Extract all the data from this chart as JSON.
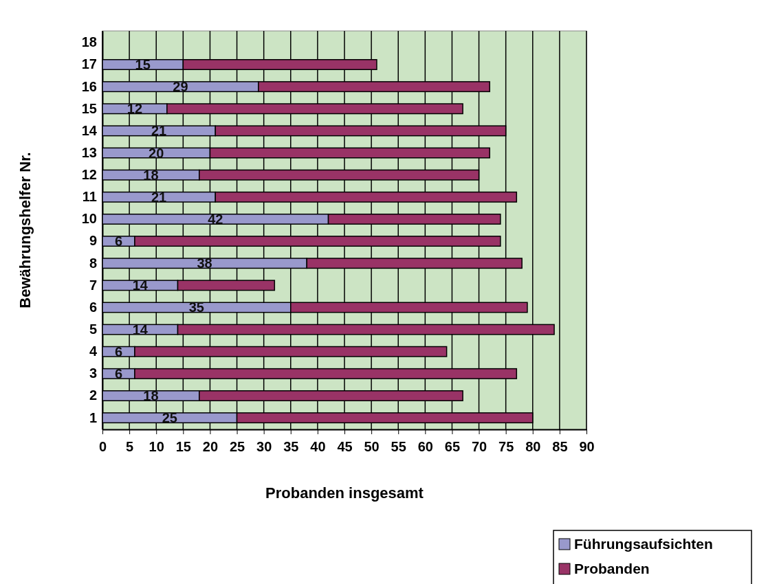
{
  "chart_data": {
    "type": "bar",
    "orientation": "horizontal",
    "stacked": true,
    "xlabel": "Probanden insgesamt",
    "ylabel": "Bewährungshelfer Nr.",
    "categories": [
      "18",
      "17",
      "16",
      "15",
      "14",
      "13",
      "12",
      "11",
      "10",
      "9",
      "8",
      "7",
      "6",
      "5",
      "4",
      "3",
      "2",
      "1"
    ],
    "series": [
      {
        "name": "Führungsaufsichten",
        "color": "#9999cc",
        "values": [
          null,
          15,
          29,
          12,
          21,
          20,
          18,
          21,
          42,
          6,
          38,
          14,
          35,
          14,
          6,
          6,
          18,
          25
        ],
        "value_labels": [
          null,
          "15",
          "29",
          "12",
          "21",
          "20",
          "18",
          "21",
          "42",
          "6",
          "38",
          "14",
          "35",
          "14",
          "6",
          "6",
          "18",
          "25"
        ]
      },
      {
        "name": "Probanden",
        "color": "#993366",
        "values": [
          null,
          36,
          43,
          55,
          54,
          52,
          52,
          56,
          32,
          68,
          40,
          18,
          44,
          70,
          58,
          71,
          49,
          55
        ]
      }
    ],
    "xlim": [
      0,
      90
    ],
    "xticks": [
      0,
      5,
      10,
      15,
      20,
      25,
      30,
      35,
      40,
      45,
      50,
      55,
      60,
      65,
      70,
      75,
      80,
      85,
      90
    ],
    "grid": "x",
    "legend": "bottom right"
  }
}
